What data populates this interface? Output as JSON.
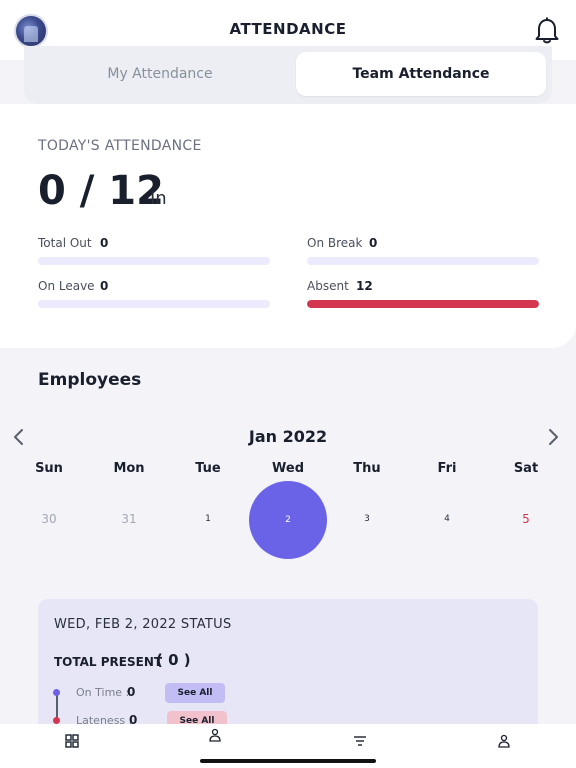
{
  "header": {
    "title": "ATTENDANCE",
    "avatar_icon": "user-avatar",
    "bell_icon": "bell-icon"
  },
  "tabs": {
    "my_label": "My Attendance",
    "team_label": "Team Attendance",
    "active": "Team Attendance"
  },
  "today": {
    "label": "TODAY'S ATTENDANCE",
    "count": "0 / 12",
    "suffix": "In",
    "stats": {
      "total_out": {
        "label": "Total Out",
        "value": "0",
        "fraction": 0
      },
      "on_break": {
        "label": "On Break",
        "value": "0",
        "fraction": 0
      },
      "on_leave": {
        "label": "On Leave",
        "value": "0",
        "fraction": 0
      },
      "absent": {
        "label": "Absent",
        "value": "12",
        "fraction": 1
      }
    },
    "colors": {
      "track": "#eceafd",
      "absent": "#d4354f"
    }
  },
  "employees": {
    "title": "Employees",
    "calendar": {
      "month": "Jan 2022",
      "weekdays": [
        "Sun",
        "Mon",
        "Tue",
        "Wed",
        "Thu",
        "Fri",
        "Sat"
      ],
      "days": [
        "30",
        "31",
        "1",
        "2",
        "3",
        "4",
        "5"
      ],
      "selected": "2",
      "accent": "#6a63e8"
    }
  },
  "status": {
    "title": "WED, FEB 2, 2022 STATUS",
    "total_present_label": "TOTAL PRESENT",
    "total_present_value": "( 0 )",
    "on_time": {
      "label": "On Time :",
      "value": "0",
      "button": "See All"
    },
    "lateness": {
      "label": "Lateness :",
      "value": "0",
      "button": "See All"
    }
  },
  "tabbar": {
    "icons": [
      "dashboard-icon",
      "attendance-icon",
      "filter-icon",
      "profile-icon"
    ]
  }
}
